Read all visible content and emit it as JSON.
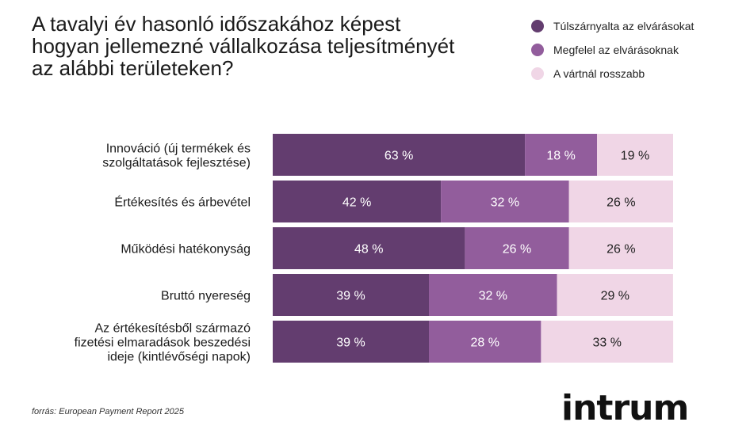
{
  "chart_data": {
    "type": "bar",
    "orientation": "horizontal",
    "stacked": true,
    "title_lines": [
      "A tavalyi év hasonló időszakához képest",
      "hogyan jellemezné vállalkozása teljesítményét",
      "az alábbi területeken?"
    ],
    "categories": [
      [
        "Innováció (új termékek és",
        "szolgáltatások fejlesztése)"
      ],
      [
        "Értékesítés és árbevétel"
      ],
      [
        "Működési hatékonyság"
      ],
      [
        "Bruttó nyereség"
      ],
      [
        "Az értékesítésből származó",
        "fizetési elmaradások beszedési",
        "ideje (kintlévőségi napok)"
      ]
    ],
    "series": [
      {
        "name": "Túlszárnyalta az elvárásokat",
        "color": "#633d6f",
        "label_color": "#ffffff",
        "values": [
          63,
          42,
          48,
          39,
          39
        ]
      },
      {
        "name": "Megfelel az elvárásoknak",
        "color": "#925d9c",
        "label_color": "#ffffff",
        "values": [
          18,
          32,
          26,
          32,
          28
        ]
      },
      {
        "name": "A vártnál rosszabb",
        "color": "#f0d6e6",
        "label_color": "#222222",
        "values": [
          19,
          26,
          26,
          29,
          33
        ]
      }
    ],
    "value_suffix": " %",
    "xlim": [
      0,
      100
    ],
    "grid": false,
    "legend_position": "top-right"
  },
  "source": "forrás: European Payment Report 2025",
  "logo_text": "intrum"
}
